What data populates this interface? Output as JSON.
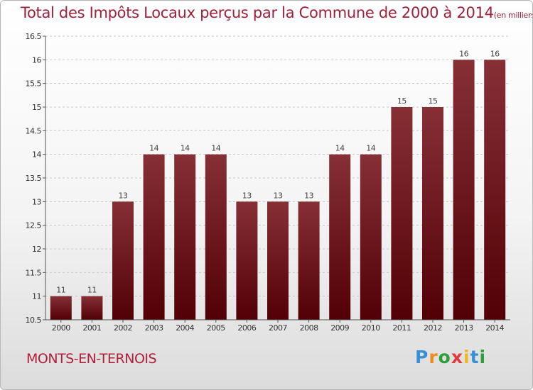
{
  "page": {
    "title": "Total des Impôts Locaux perçus par la Commune de 2000 à 2014",
    "title_unit": "(en milliers d'€)",
    "commune": "MONTS-EN-TERNOIS",
    "logo_letters": [
      "P",
      "r",
      "o",
      "x",
      "i",
      "t",
      "i"
    ],
    "logo_colors": [
      "#3a8fd6",
      "#f08a1c",
      "#2f9e3a",
      "#e03a3a",
      "#f0b81c",
      "#3a8fd6",
      "#2f9e3a"
    ]
  },
  "colors": {
    "bar_top": "#863036",
    "bar_bottom": "#520005",
    "grid": "#c8c8c8",
    "axis": "#555555",
    "tick_text": "#333333"
  },
  "chart_data": {
    "type": "bar",
    "title": "Total des Impôts Locaux perçus par la Commune de 2000 à 2014",
    "xlabel": "",
    "ylabel": "",
    "ylim": [
      10.5,
      16.5
    ],
    "yticks": [
      10.5,
      11,
      11.5,
      12,
      12.5,
      13,
      13.5,
      14,
      14.5,
      15,
      15.5,
      16,
      16.5
    ],
    "ytick_labels": [
      "10.5",
      "11",
      "11.5",
      "12",
      "12.5",
      "13",
      "13.5",
      "14",
      "14.5",
      "15",
      "15.5",
      "16",
      "16.5"
    ],
    "grid": true,
    "categories": [
      "2000",
      "2001",
      "2002",
      "2003",
      "2004",
      "2005",
      "2006",
      "2007",
      "2008",
      "2009",
      "2010",
      "2011",
      "2012",
      "2013",
      "2014"
    ],
    "values": [
      11,
      11,
      13,
      14,
      14,
      14,
      13,
      13,
      13,
      14,
      14,
      15,
      15,
      16,
      16
    ],
    "value_labels": [
      "11",
      "11",
      "13",
      "14",
      "14",
      "14",
      "13",
      "13",
      "13",
      "14",
      "14",
      "15",
      "15",
      "16",
      "16"
    ]
  }
}
